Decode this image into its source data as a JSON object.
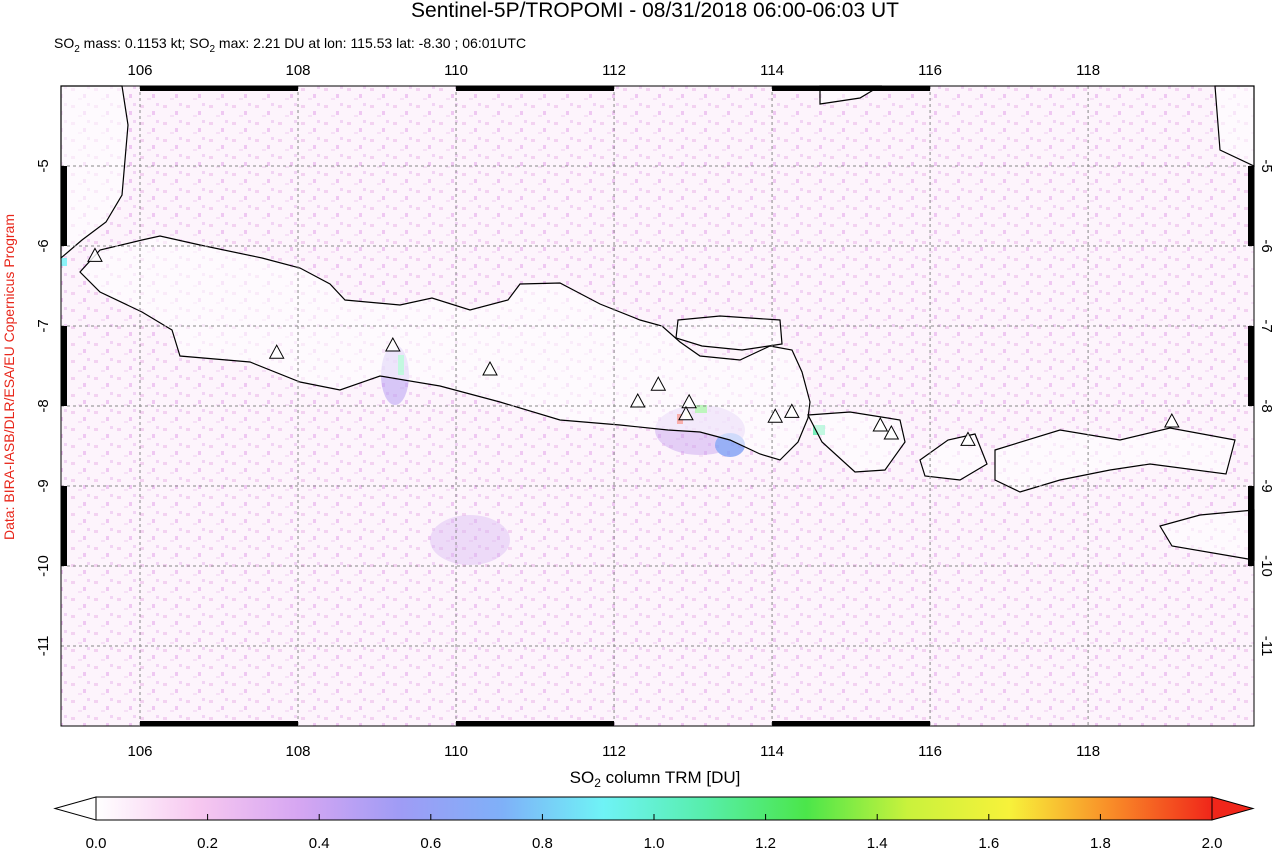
{
  "title": "Sentinel-5P/TROPOMI - 08/31/2018 06:00-06:03 UT",
  "subtitle": [
    "SO",
    "2",
    " mass: 0.1153 kt; SO",
    "2",
    " max: 2.21 DU at lon: 115.53 lat: -8.30 ; 06:01UTC"
  ],
  "credit": "Data: BIRA-IASB/DLR/ESA/EU Copernicus Program",
  "map": {
    "xlim": [
      105,
      120.1
    ],
    "ylim": [
      -12,
      -4
    ],
    "xticks": [
      106,
      108,
      110,
      112,
      114,
      116,
      118
    ],
    "yticks": [
      -5,
      -6,
      -7,
      -8,
      -9,
      -10,
      -11
    ],
    "grid": true,
    "volcano_color": "#ffffff",
    "volcanoes": [
      {
        "lon": 105.43,
        "lat": -6.13
      },
      {
        "lon": 107.73,
        "lat": -7.34
      },
      {
        "lon": 109.2,
        "lat": -7.25
      },
      {
        "lon": 110.43,
        "lat": -7.55
      },
      {
        "lon": 112.3,
        "lat": -7.95
      },
      {
        "lon": 112.56,
        "lat": -7.74
      },
      {
        "lon": 112.95,
        "lat": -7.96
      },
      {
        "lon": 112.91,
        "lat": -8.11
      },
      {
        "lon": 114.04,
        "lat": -8.14
      },
      {
        "lon": 114.25,
        "lat": -8.08
      },
      {
        "lon": 115.37,
        "lat": -8.25
      },
      {
        "lon": 115.51,
        "lat": -8.35
      },
      {
        "lon": 116.48,
        "lat": -8.43
      },
      {
        "lon": 119.06,
        "lat": -8.2
      }
    ]
  },
  "colorbar": {
    "label": [
      "SO",
      "2",
      " column TRM [DU]"
    ],
    "lim": [
      0,
      2
    ],
    "ticks": [
      {
        "value": 0,
        "label": "0.0"
      },
      {
        "value": 0.2,
        "label": "0.2"
      },
      {
        "value": 0.4,
        "label": "0.4"
      },
      {
        "value": 0.6,
        "label": "0.6"
      },
      {
        "value": 0.8,
        "label": "0.8"
      },
      {
        "value": 1,
        "label": "1.0"
      },
      {
        "value": 1.2,
        "label": "1.2"
      },
      {
        "value": 1.4,
        "label": "1.4"
      },
      {
        "value": 1.6,
        "label": "1.6"
      },
      {
        "value": 1.8,
        "label": "1.8"
      },
      {
        "value": 2,
        "label": "2.0"
      }
    ],
    "colors": [
      "#ffffff",
      "#f7c8f0",
      "#d6a6f2",
      "#9f9cf5",
      "#7fb0f8",
      "#6ff3f6",
      "#57eeab",
      "#4be64a",
      "#c9f23c",
      "#f7f23a",
      "#f98d28",
      "#f0261a"
    ]
  }
}
